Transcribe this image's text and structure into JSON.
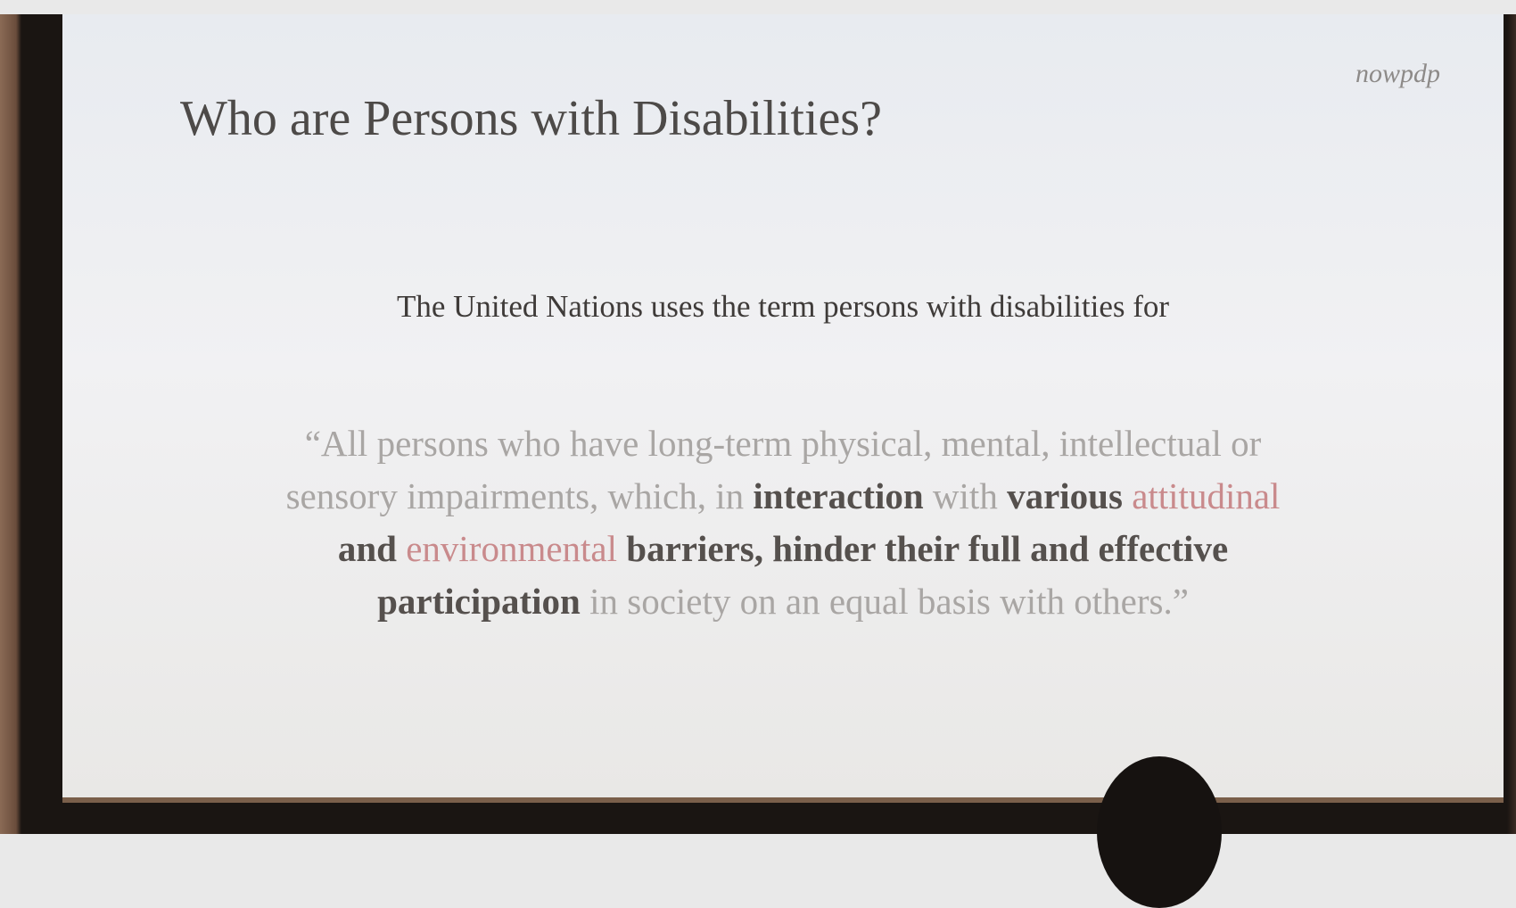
{
  "slide": {
    "title": "Who are Persons with Disabilities?",
    "logo": "nowpdp",
    "intro": "The United Nations uses the term persons with disabilities for",
    "quote_lines": [
      [
        {
          "text": "“All persons who have long-term physical, mental, intellectual or",
          "style": "light"
        }
      ],
      [
        {
          "text": "sensory impairments, which, in ",
          "style": "light"
        },
        {
          "text": "interaction",
          "style": "bold"
        },
        {
          "text": " with ",
          "style": "light"
        },
        {
          "text": "various ",
          "style": "bold"
        },
        {
          "text": "attitudinal",
          "style": "red"
        }
      ],
      [
        {
          "text": "and ",
          "style": "bold"
        },
        {
          "text": "environmental",
          "style": "red"
        },
        {
          "text": " barriers, hinder their full and effective",
          "style": "bold"
        }
      ],
      [
        {
          "text": "participation",
          "style": "bold"
        },
        {
          "text": " in society on an equal basis with others.”",
          "style": "light"
        }
      ]
    ]
  }
}
